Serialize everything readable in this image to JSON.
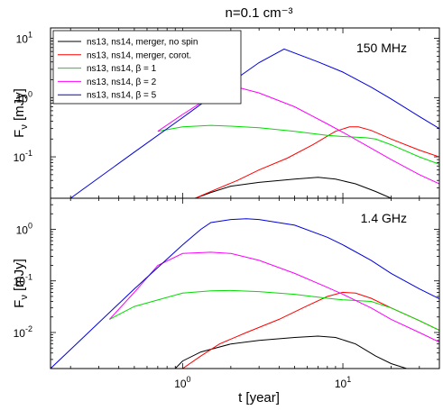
{
  "chart_data": {
    "type": "line",
    "title": "n=0.1 cm⁻³",
    "xlabel": "t [year]",
    "xscale": "log",
    "xlim": [
      0.15,
      40
    ],
    "x_ticks": [
      {
        "value": 1,
        "label": "10",
        "sup": "0"
      },
      {
        "value": 10,
        "label": "10",
        "sup": "1"
      }
    ],
    "colors": {
      "ns_merger_nospin": "#000000",
      "ns_merger_corot": "#ff0000",
      "beta1": "#00dd00",
      "beta2": "#ff00ff",
      "beta5": "#0000dd"
    },
    "legend": {
      "placement": "top-left",
      "entries": [
        {
          "key": "ns_merger_nospin",
          "label": "ns13, ns14, merger, no spin"
        },
        {
          "key": "ns_merger_corot",
          "label": "ns13, ns14, merger, corot."
        },
        {
          "key": "beta1",
          "label": "ns13, ns14, β = 1"
        },
        {
          "key": "beta2",
          "label": "ns13, ns14, β = 2"
        },
        {
          "key": "beta5",
          "label": "ns13, ns14, β = 5"
        }
      ]
    },
    "panels": [
      {
        "annotation": "150 MHz",
        "ylabel": "F",
        "ylabel_sub": "ν",
        "ylabel_unit": "[mJy]",
        "yscale": "log",
        "ylim": [
          0.02,
          15
        ],
        "y_ticks": [
          {
            "value": 0.1,
            "label": "10",
            "sup": "-1"
          },
          {
            "value": 1,
            "label": "10",
            "sup": "0"
          },
          {
            "value": 10,
            "label": "10",
            "sup": "1"
          }
        ],
        "series": [
          {
            "key": "ns_merger_nospin",
            "x": [
              1.2,
              1.5,
              2,
              3,
              5,
              7,
              9,
              12,
              16,
              20
            ],
            "y": [
              0.02,
              0.025,
              0.032,
              0.037,
              0.042,
              0.045,
              0.042,
              0.035,
              0.026,
              0.02
            ]
          },
          {
            "key": "ns_merger_corot",
            "x": [
              1.2,
              1.6,
              2.2,
              3,
              4.5,
              6.5,
              9,
              11,
              12.5,
              15,
              20,
              30,
              40
            ],
            "y": [
              0.02,
              0.028,
              0.04,
              0.06,
              0.095,
              0.16,
              0.27,
              0.32,
              0.32,
              0.28,
              0.2,
              0.13,
              0.1
            ]
          },
          {
            "key": "beta1",
            "x": [
              0.7,
              1,
              1.5,
              2,
              3,
              5,
              8,
              10,
              14,
              16,
              20,
              30,
              40
            ],
            "y": [
              0.27,
              0.32,
              0.34,
              0.33,
              0.31,
              0.27,
              0.23,
              0.22,
              0.21,
              0.2,
              0.16,
              0.1,
              0.075
            ]
          },
          {
            "key": "beta2",
            "x": [
              0.7,
              1,
              1.5,
              2,
              3,
              5,
              8,
              10,
              15,
              20,
              30,
              40
            ],
            "y": [
              0.27,
              0.52,
              1.05,
              1.6,
              1.2,
              0.7,
              0.36,
              0.26,
              0.14,
              0.09,
              0.05,
              0.035
            ]
          },
          {
            "key": "beta5",
            "x": [
              0.2,
              0.5,
              1,
              2,
              3,
              4.3,
              7,
              10,
              15,
              20,
              30,
              40
            ],
            "y": [
              0.02,
              0.12,
              0.46,
              1.8,
              3.9,
              6.6,
              4,
              2.7,
              1.5,
              0.95,
              0.48,
              0.3
            ]
          }
        ]
      },
      {
        "annotation": "1.4 GHz",
        "ylabel": "F",
        "ylabel_sub": "ν",
        "ylabel_unit": "[mJy]",
        "yscale": "log",
        "ylim": [
          0.002,
          4
        ],
        "y_ticks": [
          {
            "value": 0.01,
            "label": "10",
            "sup": "-2"
          },
          {
            "value": 0.1,
            "label": "10",
            "sup": "-1"
          },
          {
            "value": 1,
            "label": "10",
            "sup": "0"
          }
        ],
        "series": [
          {
            "key": "ns_merger_nospin",
            "x": [
              0.9,
              1,
              1.3,
              2,
              3,
              5,
              7,
              9,
              12,
              16,
              20,
              25
            ],
            "y": [
              0.002,
              0.0028,
              0.0042,
              0.006,
              0.007,
              0.008,
              0.0085,
              0.008,
              0.006,
              0.0035,
              0.0025,
              0.002
            ]
          },
          {
            "key": "ns_merger_corot",
            "x": [
              1,
              1.3,
              1.7,
              2.5,
              4,
              6,
              8,
              10,
              12,
              15,
              20,
              30,
              40
            ],
            "y": [
              0.002,
              0.0035,
              0.006,
              0.01,
              0.018,
              0.033,
              0.05,
              0.06,
              0.058,
              0.046,
              0.03,
              0.017,
              0.011
            ]
          },
          {
            "key": "beta1",
            "x": [
              0.35,
              0.5,
              0.8,
              1,
              1.5,
              2,
              3,
              5,
              8,
              10,
              15,
              20,
              30,
              40
            ],
            "y": [
              0.018,
              0.032,
              0.048,
              0.058,
              0.064,
              0.065,
              0.062,
              0.055,
              0.046,
              0.043,
              0.04,
              0.03,
              0.017,
              0.011
            ]
          },
          {
            "key": "beta2",
            "x": [
              0.35,
              0.5,
              0.7,
              1,
              1.5,
              2,
              3,
              5,
              8,
              10,
              15,
              20,
              30,
              40
            ],
            "y": [
              0.018,
              0.06,
              0.2,
              0.34,
              0.36,
              0.34,
              0.25,
              0.14,
              0.075,
              0.055,
              0.03,
              0.018,
              0.01,
              0.0065
            ]
          },
          {
            "key": "beta5",
            "x": [
              0.15,
              0.5,
              1,
              1.3,
              1.5,
              2,
              2.5,
              3,
              5,
              8,
              10,
              15,
              20,
              30,
              40
            ],
            "y": [
              0.002,
              0.07,
              0.5,
              1.0,
              1.35,
              1.55,
              1.6,
              1.55,
              1.2,
              0.7,
              0.5,
              0.25,
              0.14,
              0.07,
              0.045
            ]
          }
        ]
      }
    ]
  }
}
